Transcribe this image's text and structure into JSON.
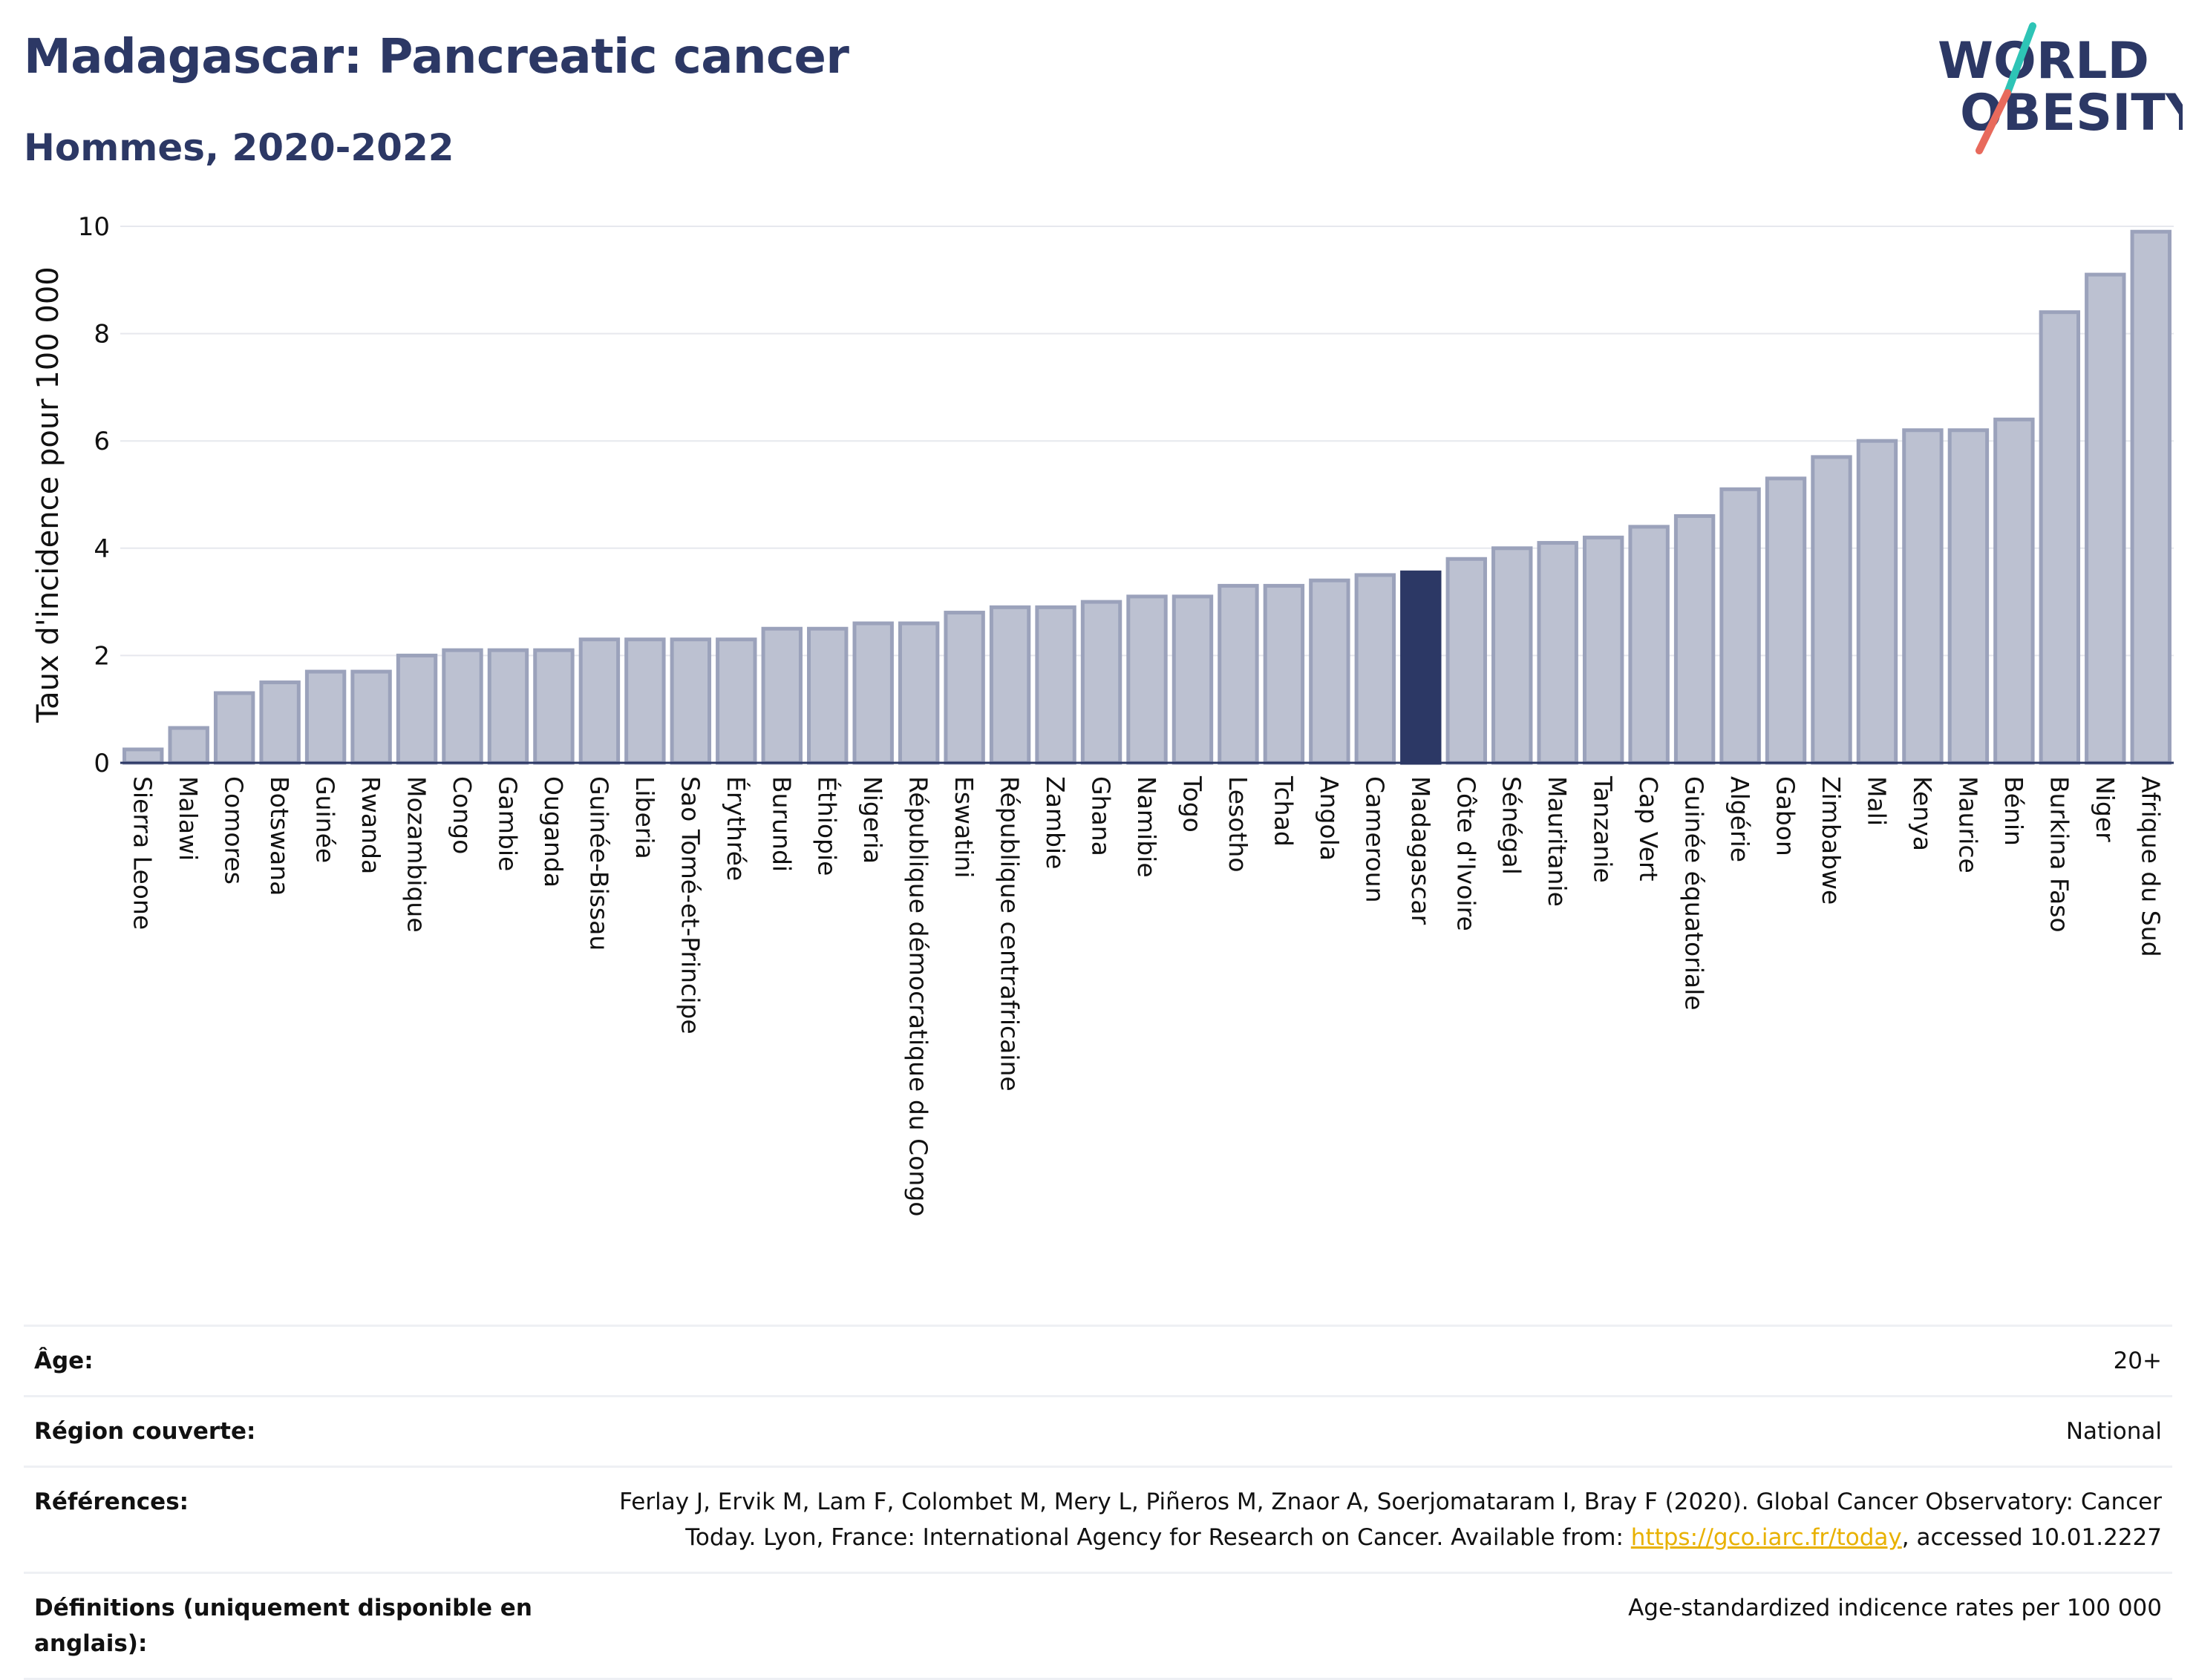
{
  "header": {
    "title": "Madagascar: Pancreatic cancer",
    "subtitle": "Hommes, 2020-2022"
  },
  "logo": {
    "line1": "WORLD",
    "line2": "OBESITY"
  },
  "colors": {
    "bar": "#bcc1d1",
    "bar_stroke": "#9ba2bb",
    "highlight": "#2c3865",
    "title": "#2c3865",
    "link": "#e8b100"
  },
  "chart_data": {
    "type": "bar",
    "ylabel": "Taux d'incidence pour 100 000",
    "ylim": [
      0,
      10
    ],
    "yticks": [
      0,
      2,
      4,
      6,
      8,
      10
    ],
    "grid": true,
    "highlight": "Madagascar",
    "categories": [
      "Sierra Leone",
      "Malawi",
      "Comores",
      "Botswana",
      "Guinée",
      "Rwanda",
      "Mozambique",
      "Congo",
      "Gambie",
      "Ouganda",
      "Guinée-Bissau",
      "Liberia",
      "Sao Tomé-et-Principe",
      "Érythrée",
      "Burundi",
      "Éthiopie",
      "Nigeria",
      "République démocratique du Congo",
      "Eswatini",
      "République centrafricaine",
      "Zambie",
      "Ghana",
      "Namibie",
      "Togo",
      "Lesotho",
      "Tchad",
      "Angola",
      "Cameroun",
      "Madagascar",
      "Côte d'Ivoire",
      "Sénégal",
      "Mauritanie",
      "Tanzanie",
      "Cap Vert",
      "Guinée équatoriale",
      "Algérie",
      "Gabon",
      "Zimbabwe",
      "Mali",
      "Kenya",
      "Maurice",
      "Bénin",
      "Burkina Faso",
      "Niger",
      "Afrique du Sud"
    ],
    "values": [
      0.25,
      0.65,
      1.3,
      1.5,
      1.7,
      1.7,
      2.0,
      2.1,
      2.1,
      2.1,
      2.3,
      2.3,
      2.3,
      2.3,
      2.5,
      2.5,
      2.6,
      2.6,
      2.8,
      2.9,
      2.9,
      3.0,
      3.1,
      3.1,
      3.3,
      3.3,
      3.4,
      3.5,
      3.55,
      3.8,
      4.0,
      4.1,
      4.2,
      4.4,
      4.6,
      5.1,
      5.3,
      5.7,
      6.0,
      6.2,
      6.2,
      6.4,
      8.4,
      9.1,
      9.9
    ]
  },
  "meta": {
    "age": {
      "label": "Âge:",
      "value": "20+"
    },
    "region": {
      "label": "Région couverte:",
      "value": "National"
    },
    "references": {
      "label": "Références:",
      "text1": "Ferlay J, Ervik M, Lam F, Colombet M, Mery L, Piñeros M, Znaor A, Soerjomataram I, Bray F (2020). Global Cancer Observatory: Cancer Today. Lyon, France: International Agency for Research on Cancer. Available from: ",
      "link": "https://gco.iarc.fr/today",
      "text2": ", accessed 10.01.2227"
    },
    "definitions": {
      "label": "Définitions (uniquement disponible en anglais):",
      "value": "Age-standardized indicence rates per 100 000"
    }
  }
}
